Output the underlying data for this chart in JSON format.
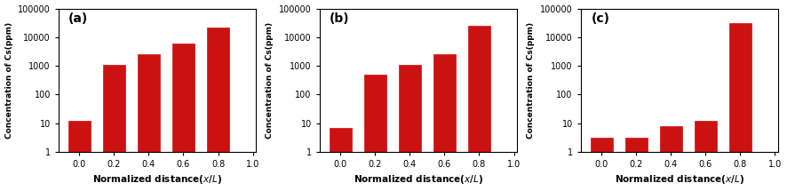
{
  "panels": [
    {
      "label": "(a)",
      "x_positions": [
        0.0,
        0.2,
        0.4,
        0.6,
        0.8
      ],
      "values": [
        12,
        1100,
        2500,
        6000,
        22000
      ],
      "bar_color": "#cc1111",
      "bar_width": 0.13,
      "xlim": [
        -0.12,
        1.02
      ],
      "ylim": [
        1,
        100000
      ],
      "xlabel": "Normalized distance(χ/L)",
      "ylabel": "Concentration of Cs(ppm)",
      "xticks": [
        0.0,
        0.2,
        0.4,
        0.6,
        0.8,
        1.0
      ]
    },
    {
      "label": "(b)",
      "x_positions": [
        0.0,
        0.2,
        0.4,
        0.6,
        0.8
      ],
      "values": [
        7,
        500,
        1050,
        2500,
        25000
      ],
      "bar_color": "#cc1111",
      "bar_width": 0.13,
      "xlim": [
        -0.12,
        1.02
      ],
      "ylim": [
        1,
        100000
      ],
      "xlabel": "Normalized distance(χ/L)",
      "ylabel": "Concentration of Cs(ppm)",
      "xticks": [
        0.0,
        0.2,
        0.4,
        0.6,
        0.8,
        1.0
      ]
    },
    {
      "label": "(c)",
      "x_positions": [
        0.0,
        0.2,
        0.4,
        0.6,
        0.8
      ],
      "values": [
        3,
        3,
        8,
        12,
        30000
      ],
      "bar_color": "#cc1111",
      "bar_width": 0.13,
      "xlim": [
        -0.12,
        1.02
      ],
      "ylim": [
        1,
        100000
      ],
      "xlabel": "Normalized distance(χ/L)",
      "ylabel": "Concentration of Cs(ppm)",
      "xticks": [
        0.0,
        0.2,
        0.4,
        0.6,
        0.8,
        1.0
      ]
    }
  ],
  "fig_width": 8.86,
  "fig_height": 2.15,
  "dpi": 100,
  "background_color": "#ffffff"
}
